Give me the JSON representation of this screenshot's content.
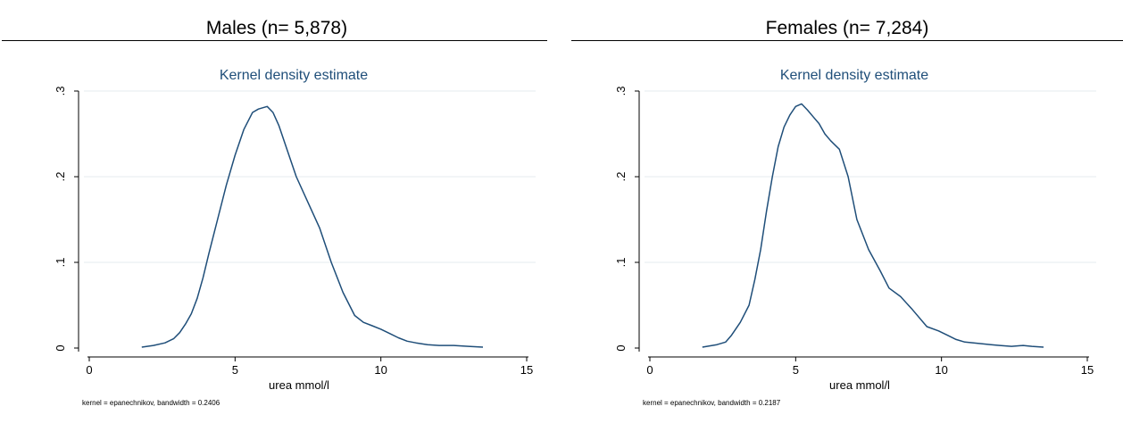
{
  "panels": [
    {
      "header": "Males (n= 5,878)",
      "note": "kernel = epanechnikov, bandwidth = 0.2406"
    },
    {
      "header": "Females (n= 7,284)",
      "note": "kernel = epanechnikov, bandwidth = 0.2187"
    }
  ],
  "chart_data": [
    {
      "type": "line",
      "title": "Kernel density estimate",
      "xlabel": "urea mmol/l",
      "ylabel": "",
      "xlim": [
        0,
        15
      ],
      "ylim": [
        0,
        0.3
      ],
      "x_ticks": [
        "0",
        "5",
        "10",
        "15"
      ],
      "y_ticks": [
        "0",
        ".1",
        ".2",
        ".3"
      ],
      "grid": true,
      "line_color": "#1f4e79",
      "series": [
        {
          "x": [
            1.8,
            2.2,
            2.6,
            2.9,
            3.1,
            3.3,
            3.5,
            3.7,
            3.9,
            4.1,
            4.4,
            4.7,
            5.0,
            5.3,
            5.6,
            5.8,
            6.1,
            6.3,
            6.5,
            6.8,
            7.1,
            7.5,
            7.9,
            8.3,
            8.7,
            9.1,
            9.4,
            9.7,
            10.0,
            10.3,
            10.6,
            10.9,
            11.2,
            11.6,
            12.0,
            12.5,
            13.0,
            13.5
          ],
          "y": [
            0.001,
            0.003,
            0.006,
            0.011,
            0.018,
            0.028,
            0.04,
            0.058,
            0.082,
            0.11,
            0.15,
            0.19,
            0.225,
            0.255,
            0.275,
            0.279,
            0.282,
            0.275,
            0.26,
            0.23,
            0.2,
            0.17,
            0.14,
            0.1,
            0.065,
            0.038,
            0.03,
            0.026,
            0.022,
            0.017,
            0.012,
            0.008,
            0.006,
            0.004,
            0.003,
            0.003,
            0.002,
            0.001
          ]
        }
      ]
    },
    {
      "type": "line",
      "title": "Kernel density estimate",
      "xlabel": "urea mmol/l",
      "ylabel": "",
      "xlim": [
        0,
        15
      ],
      "ylim": [
        0,
        0.3
      ],
      "x_ticks": [
        "0",
        "5",
        "10",
        "15"
      ],
      "y_ticks": [
        "0",
        ".1",
        ".2",
        ".3"
      ],
      "grid": true,
      "line_color": "#1f4e79",
      "series": [
        {
          "x": [
            1.8,
            2.3,
            2.6,
            2.8,
            3.1,
            3.4,
            3.6,
            3.8,
            4.0,
            4.2,
            4.4,
            4.6,
            4.8,
            5.0,
            5.2,
            5.4,
            5.6,
            5.8,
            6.0,
            6.2,
            6.5,
            6.8,
            7.1,
            7.5,
            7.9,
            8.2,
            8.6,
            9.0,
            9.5,
            9.9,
            10.2,
            10.5,
            10.8,
            11.1,
            11.4,
            11.7,
            12.0,
            12.4,
            12.8,
            13.1,
            13.5
          ],
          "y": [
            0.001,
            0.004,
            0.007,
            0.015,
            0.03,
            0.05,
            0.08,
            0.115,
            0.16,
            0.2,
            0.235,
            0.258,
            0.272,
            0.282,
            0.285,
            0.278,
            0.27,
            0.262,
            0.25,
            0.242,
            0.232,
            0.2,
            0.15,
            0.115,
            0.09,
            0.07,
            0.06,
            0.045,
            0.025,
            0.02,
            0.015,
            0.01,
            0.007,
            0.006,
            0.005,
            0.004,
            0.003,
            0.002,
            0.003,
            0.002,
            0.001
          ]
        }
      ]
    }
  ]
}
